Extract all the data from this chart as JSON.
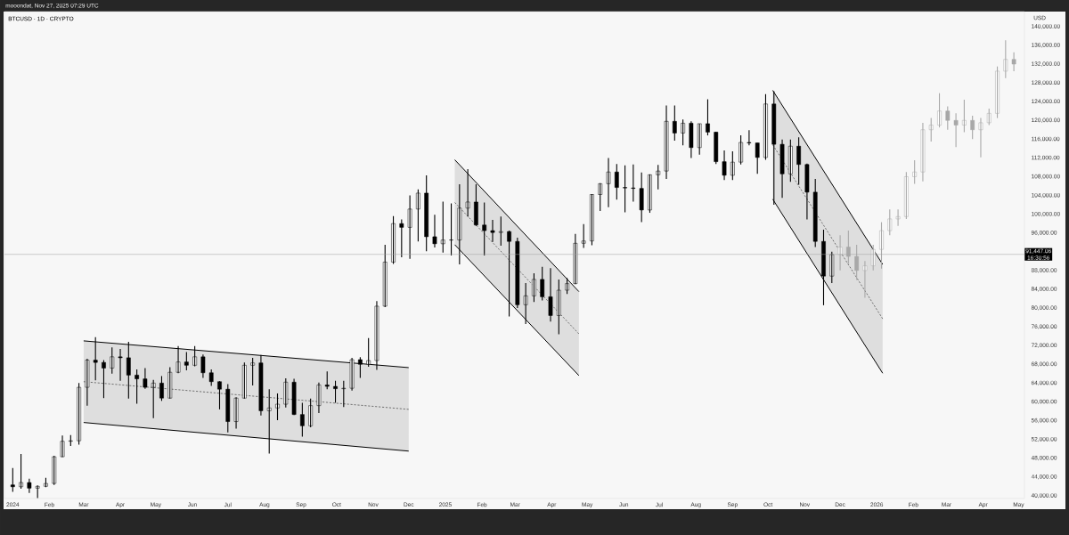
{
  "chart_data": {
    "type": "candlestick",
    "title": "BTCUSD · 1D · CRYPTO",
    "ylabel": "USD",
    "annotations": [
      "mooondat, Nov 27, 2025 07:29 UTC",
      "16:30:56"
    ],
    "xlim": [
      "2023-12-25",
      "2026-05-06"
    ],
    "xticks": [
      {
        "value": "2024-01-01",
        "label": "2024"
      },
      {
        "value": "2024-02-01",
        "label": "Feb"
      },
      {
        "value": "2024-03-01",
        "label": "Mar"
      },
      {
        "value": "2024-04-01",
        "label": "Apr"
      },
      {
        "value": "2024-05-01",
        "label": "May"
      },
      {
        "value": "2024-06-01",
        "label": "Jun"
      },
      {
        "value": "2024-07-01",
        "label": "Jul"
      },
      {
        "value": "2024-08-01",
        "label": "Aug"
      },
      {
        "value": "2024-09-01",
        "label": "Sep"
      },
      {
        "value": "2024-10-01",
        "label": "Oct"
      },
      {
        "value": "2024-11-01",
        "label": "Nov"
      },
      {
        "value": "2024-12-01",
        "label": "Dec"
      },
      {
        "value": "2025-01-01",
        "label": "2025"
      },
      {
        "value": "2025-02-01",
        "label": "Feb"
      },
      {
        "value": "2025-03-01",
        "label": "Mar"
      },
      {
        "value": "2025-04-01",
        "label": "Apr"
      },
      {
        "value": "2025-05-01",
        "label": "May"
      },
      {
        "value": "2025-06-01",
        "label": "Jun"
      },
      {
        "value": "2025-07-01",
        "label": "Jul"
      },
      {
        "value": "2025-08-01",
        "label": "Aug"
      },
      {
        "value": "2025-09-01",
        "label": "Sep"
      },
      {
        "value": "2025-10-01",
        "label": "Oct"
      },
      {
        "value": "2025-11-01",
        "label": "Nov"
      },
      {
        "value": "2025-12-01",
        "label": "Dec"
      },
      {
        "value": "2026-01-01",
        "label": "2026"
      },
      {
        "value": "2026-02-01",
        "label": "Feb"
      },
      {
        "value": "2026-03-01",
        "label": "Mar"
      },
      {
        "value": "2026-04-01",
        "label": "Apr"
      },
      {
        "value": "2026-05-01",
        "label": "May"
      }
    ],
    "ylim": [
      39400,
      143200
    ],
    "yticks": [
      {
        "value": 40000,
        "label": "40,000.00"
      },
      {
        "value": 44000,
        "label": "44,000.00"
      },
      {
        "value": 48000,
        "label": "48,000.00"
      },
      {
        "value": 52000,
        "label": "52,000.00"
      },
      {
        "value": 56000,
        "label": "56,000.00"
      },
      {
        "value": 60000,
        "label": "60,000.00"
      },
      {
        "value": 64000,
        "label": "64,000.00"
      },
      {
        "value": 68000,
        "label": "68,000.00"
      },
      {
        "value": 72000,
        "label": "72,000.00"
      },
      {
        "value": 76000,
        "label": "76,000.00"
      },
      {
        "value": 80000,
        "label": "80,000.00"
      },
      {
        "value": 84000,
        "label": "84,000.00"
      },
      {
        "value": 88000,
        "label": "88,000.00"
      },
      {
        "value": 96000,
        "label": "96,000.00"
      },
      {
        "value": 100000,
        "label": "100,000.00"
      },
      {
        "value": 104000,
        "label": "104,000.00"
      },
      {
        "value": 108000,
        "label": "108,000.00"
      },
      {
        "value": 112000,
        "label": "112,000.00"
      },
      {
        "value": 116000,
        "label": "116,000.00"
      },
      {
        "value": 120000,
        "label": "120,000.00"
      },
      {
        "value": 124000,
        "label": "124,000.00"
      },
      {
        "value": 128000,
        "label": "128,000.00"
      },
      {
        "value": 132000,
        "label": "132,000.00"
      },
      {
        "value": 136000,
        "label": "136,000.00"
      },
      {
        "value": 140000,
        "label": "140,000.00"
      }
    ],
    "ref_lines": [
      {
        "axis": "y",
        "value": 91447.06,
        "label": "91,447.06",
        "color": "#9e9e9e"
      }
    ],
    "series": [
      {
        "color": "#000000",
        "x": [
          "2024-01-01",
          "2024-01-08",
          "2024-01-15",
          "2024-01-22",
          "2024-01-29",
          "2024-02-05",
          "2024-02-12",
          "2024-02-19",
          "2024-02-26",
          "2024-03-04",
          "2024-03-11",
          "2024-03-18",
          "2024-03-25",
          "2024-04-01",
          "2024-04-08",
          "2024-04-15",
          "2024-04-22",
          "2024-04-29",
          "2024-05-06",
          "2024-05-13",
          "2024-05-20",
          "2024-05-27",
          "2024-06-03",
          "2024-06-10",
          "2024-06-17",
          "2024-06-24",
          "2024-07-01",
          "2024-07-08",
          "2024-07-15",
          "2024-07-22",
          "2024-07-29",
          "2024-08-05",
          "2024-08-12",
          "2024-08-19",
          "2024-08-26",
          "2024-09-02",
          "2024-09-09",
          "2024-09-16",
          "2024-09-23",
          "2024-09-30",
          "2024-10-07",
          "2024-10-14",
          "2024-10-21",
          "2024-10-28",
          "2024-11-04",
          "2024-11-11",
          "2024-11-18",
          "2024-11-25",
          "2024-12-02",
          "2024-12-09",
          "2024-12-16",
          "2024-12-23",
          "2024-12-30",
          "2025-01-06",
          "2025-01-13",
          "2025-01-20",
          "2025-01-27",
          "2025-02-03",
          "2025-02-10",
          "2025-02-17",
          "2025-02-24",
          "2025-03-03",
          "2025-03-10",
          "2025-03-17",
          "2025-03-24",
          "2025-03-31",
          "2025-04-07",
          "2025-04-14",
          "2025-04-21",
          "2025-04-28",
          "2025-05-05",
          "2025-05-12",
          "2025-05-19",
          "2025-05-26",
          "2025-06-02",
          "2025-06-09",
          "2025-06-16",
          "2025-06-23",
          "2025-06-30",
          "2025-07-07",
          "2025-07-14",
          "2025-07-21",
          "2025-07-28",
          "2025-08-04",
          "2025-08-11",
          "2025-08-18",
          "2025-08-25",
          "2025-09-01",
          "2025-09-08",
          "2025-09-15",
          "2025-09-22",
          "2025-09-29",
          "2025-10-06",
          "2025-10-13",
          "2025-10-20",
          "2025-10-27",
          "2025-11-03",
          "2025-11-10",
          "2025-11-17",
          "2025-11-24"
        ],
        "ohlc": [
          [
            42300,
            45900,
            40800,
            41900
          ],
          [
            41900,
            48900,
            41500,
            42800
          ],
          [
            42800,
            43600,
            40600,
            41600
          ],
          [
            41600,
            42200,
            39500,
            42000
          ],
          [
            42000,
            43800,
            41800,
            42600
          ],
          [
            42600,
            48500,
            42300,
            48300
          ],
          [
            48300,
            52800,
            48200,
            51600
          ],
          [
            51600,
            52900,
            50600,
            51700
          ],
          [
            51700,
            64000,
            50900,
            63100
          ],
          [
            63100,
            69200,
            59200,
            68900
          ],
          [
            68900,
            73800,
            64600,
            68400
          ],
          [
            68400,
            68900,
            60800,
            67200
          ],
          [
            67200,
            71600,
            66000,
            69600
          ],
          [
            69600,
            71300,
            64500,
            69400
          ],
          [
            69400,
            72800,
            60700,
            65700
          ],
          [
            65700,
            66900,
            59600,
            64900
          ],
          [
            64900,
            67200,
            62800,
            63100
          ],
          [
            63100,
            64700,
            56500,
            64000
          ],
          [
            64000,
            65500,
            60200,
            60800
          ],
          [
            60800,
            67400,
            60700,
            66300
          ],
          [
            66300,
            71900,
            66100,
            68500
          ],
          [
            68500,
            70600,
            66700,
            67800
          ],
          [
            67800,
            71900,
            67600,
            69600
          ],
          [
            69600,
            70100,
            65100,
            66200
          ],
          [
            66200,
            66900,
            63400,
            64300
          ],
          [
            64300,
            64400,
            58400,
            62700
          ],
          [
            62700,
            63800,
            53500,
            55800
          ],
          [
            55800,
            61000,
            54300,
            60800
          ],
          [
            60800,
            68400,
            60700,
            67800
          ],
          [
            67800,
            69400,
            63500,
            68300
          ],
          [
            68300,
            70000,
            57100,
            58100
          ],
          [
            58100,
            62700,
            49000,
            58700
          ],
          [
            58700,
            61800,
            56100,
            59500
          ],
          [
            59500,
            65000,
            58800,
            64200
          ],
          [
            64200,
            64900,
            57200,
            57300
          ],
          [
            57300,
            59800,
            52600,
            54900
          ],
          [
            54900,
            60700,
            54600,
            59200
          ],
          [
            59200,
            64100,
            57600,
            63600
          ],
          [
            63600,
            66500,
            62700,
            63300
          ],
          [
            63300,
            64500,
            59800,
            62800
          ],
          [
            62800,
            64500,
            58900,
            62900
          ],
          [
            62900,
            69400,
            62400,
            69000
          ],
          [
            69000,
            69500,
            65100,
            68000
          ],
          [
            68000,
            73600,
            67500,
            68800
          ],
          [
            68800,
            81500,
            66800,
            80400
          ],
          [
            80400,
            93500,
            80200,
            89800
          ],
          [
            89800,
            99600,
            89400,
            98000
          ],
          [
            98000,
            98900,
            90800,
            97200
          ],
          [
            97200,
            104000,
            90500,
            101100
          ],
          [
            101100,
            105300,
            94200,
            104500
          ],
          [
            104500,
            108300,
            92100,
            95200
          ],
          [
            95200,
            99900,
            92900,
            93700
          ],
          [
            93700,
            102700,
            91800,
            94500
          ],
          [
            94500,
            102300,
            91200,
            94500
          ],
          [
            94500,
            106400,
            89300,
            101300
          ],
          [
            101300,
            109600,
            99500,
            102600
          ],
          [
            102600,
            106400,
            97500,
            97700
          ],
          [
            97700,
            102500,
            91200,
            96500
          ],
          [
            96500,
            98800,
            94100,
            96100
          ],
          [
            96100,
            99500,
            93300,
            96300
          ],
          [
            96300,
            96500,
            78200,
            94200
          ],
          [
            94200,
            95000,
            80000,
            80700
          ],
          [
            80700,
            85300,
            76600,
            82600
          ],
          [
            82600,
            87400,
            81300,
            86100
          ],
          [
            86100,
            88800,
            81600,
            82400
          ],
          [
            82400,
            88500,
            77100,
            78400
          ],
          [
            78400,
            86100,
            74400,
            83800
          ],
          [
            83800,
            86400,
            83000,
            85200
          ],
          [
            85200,
            95800,
            85100,
            93800
          ],
          [
            93800,
            97900,
            92800,
            94300
          ],
          [
            94300,
            104300,
            93400,
            104200
          ],
          [
            104200,
            106600,
            100700,
            106500
          ],
          [
            106500,
            112000,
            101500,
            109000
          ],
          [
            109000,
            110700,
            103100,
            105700
          ],
          [
            105700,
            110400,
            100400,
            105600
          ],
          [
            105600,
            110600,
            102700,
            105500
          ],
          [
            105500,
            108900,
            98300,
            100900
          ],
          [
            100900,
            108500,
            100300,
            108400
          ],
          [
            108400,
            110500,
            105300,
            109200
          ],
          [
            109200,
            123200,
            107500,
            119800
          ],
          [
            119800,
            123200,
            115700,
            117300
          ],
          [
            117300,
            120200,
            114700,
            119400
          ],
          [
            119400,
            119800,
            112000,
            114200
          ],
          [
            114200,
            119300,
            112700,
            119300
          ],
          [
            119300,
            124500,
            116800,
            117500
          ],
          [
            117500,
            117600,
            110700,
            111200
          ],
          [
            111200,
            113600,
            107300,
            108300
          ],
          [
            108300,
            113400,
            107300,
            111100
          ],
          [
            111100,
            116800,
            110600,
            115300
          ],
          [
            115300,
            117900,
            114700,
            115200
          ],
          [
            115200,
            115200,
            108600,
            112100
          ],
          [
            112100,
            125600,
            111600,
            123500
          ],
          [
            123500,
            126200,
            102000,
            114900
          ],
          [
            114900,
            115900,
            103500,
            108600
          ],
          [
            108600,
            115900,
            106900,
            114500
          ],
          [
            114500,
            116400,
            106300,
            110600
          ],
          [
            110600,
            110800,
            98900,
            104700
          ],
          [
            104700,
            107500,
            93000,
            94200
          ],
          [
            94200,
            96700,
            80600,
            86800
          ],
          [
            86800,
            92000,
            85300,
            91400
          ]
        ]
      },
      {
        "color": "#a8a8a8",
        "x": [
          "2025-12-01",
          "2025-12-08",
          "2025-12-15",
          "2025-12-22",
          "2025-12-29",
          "2026-01-05",
          "2026-01-12",
          "2026-01-19",
          "2026-01-26",
          "2026-02-02",
          "2026-02-09",
          "2026-02-16",
          "2026-02-23",
          "2026-03-02",
          "2026-03-09",
          "2026-03-16",
          "2026-03-23",
          "2026-03-30",
          "2026-04-06",
          "2026-04-13",
          "2026-04-20",
          "2026-04-27"
        ],
        "ohlc": [
          [
            91400,
            95500,
            88000,
            93000
          ],
          [
            93000,
            96500,
            89500,
            91000
          ],
          [
            91000,
            93500,
            86000,
            88000
          ],
          [
            88000,
            90000,
            82200,
            89000
          ],
          [
            89000,
            93500,
            88000,
            92500
          ],
          [
            92500,
            98300,
            88400,
            96500
          ],
          [
            96500,
            101000,
            95500,
            99000
          ],
          [
            99000,
            101000,
            97500,
            99500
          ],
          [
            99500,
            109000,
            99000,
            108000
          ],
          [
            108000,
            111500,
            106500,
            109000
          ],
          [
            109000,
            119500,
            107000,
            118000
          ],
          [
            118000,
            120500,
            115500,
            119000
          ],
          [
            119000,
            125800,
            118500,
            122000
          ],
          [
            122000,
            123000,
            118000,
            120000
          ],
          [
            120000,
            121500,
            114300,
            119000
          ],
          [
            119000,
            124400,
            117500,
            120000
          ],
          [
            120000,
            121000,
            116000,
            118000
          ],
          [
            118000,
            120500,
            112100,
            119500
          ],
          [
            119500,
            122500,
            119000,
            121500
          ],
          [
            121500,
            131500,
            120500,
            130500
          ],
          [
            130500,
            137100,
            129000,
            133000
          ],
          [
            133000,
            134500,
            130500,
            132000
          ]
        ]
      },
      {
        "type": "line",
        "line_style": "dashed",
        "color": "#000000",
        "x": [
          "2024-03-01",
          "2024-12-01"
        ],
        "values": [
          64300,
          58400
        ],
        "lower": [
          55600,
          49500
        ],
        "upper": [
          73000,
          67300
        ]
      },
      {
        "type": "line",
        "line_style": "dashed",
        "color": "#000000",
        "x": [
          "2025-01-09",
          "2025-04-24"
        ],
        "values": [
          102500,
          74500
        ],
        "lower": [
          93500,
          65600
        ],
        "upper": [
          111600,
          83500
        ]
      },
      {
        "type": "line",
        "line_style": "dashed",
        "color": "#000000",
        "x": [
          "2025-10-05",
          "2026-01-06"
        ],
        "values": [
          114800,
          77700
        ],
        "lower": [
          103200,
          66100
        ],
        "upper": [
          126400,
          89300
        ]
      },
      {
        "type": "line",
        "line_style": "solid",
        "color": "#000000",
        "x": [
          "2024-03-01",
          "2024-12-01"
        ],
        "values": [
          73000,
          67300
        ]
      },
      {
        "type": "line",
        "line_style": "solid",
        "color": "#000000",
        "x": [
          "2024-03-01",
          "2024-12-01"
        ],
        "values": [
          55600,
          49500
        ]
      },
      {
        "type": "line",
        "line_style": "solid",
        "color": "#000000",
        "x": [
          "2025-01-09",
          "2025-04-24"
        ],
        "values": [
          111600,
          83500
        ]
      },
      {
        "type": "line",
        "line_style": "solid",
        "color": "#000000",
        "x": [
          "2025-01-09",
          "2025-04-24"
        ],
        "values": [
          93500,
          65600
        ]
      },
      {
        "type": "line",
        "line_style": "solid",
        "color": "#000000",
        "x": [
          "2025-10-05",
          "2026-01-06"
        ],
        "values": [
          126400,
          89300
        ]
      },
      {
        "type": "line",
        "line_style": "solid",
        "color": "#000000",
        "x": [
          "2025-10-05",
          "2026-01-06"
        ],
        "values": [
          103200,
          66100
        ]
      }
    ]
  }
}
